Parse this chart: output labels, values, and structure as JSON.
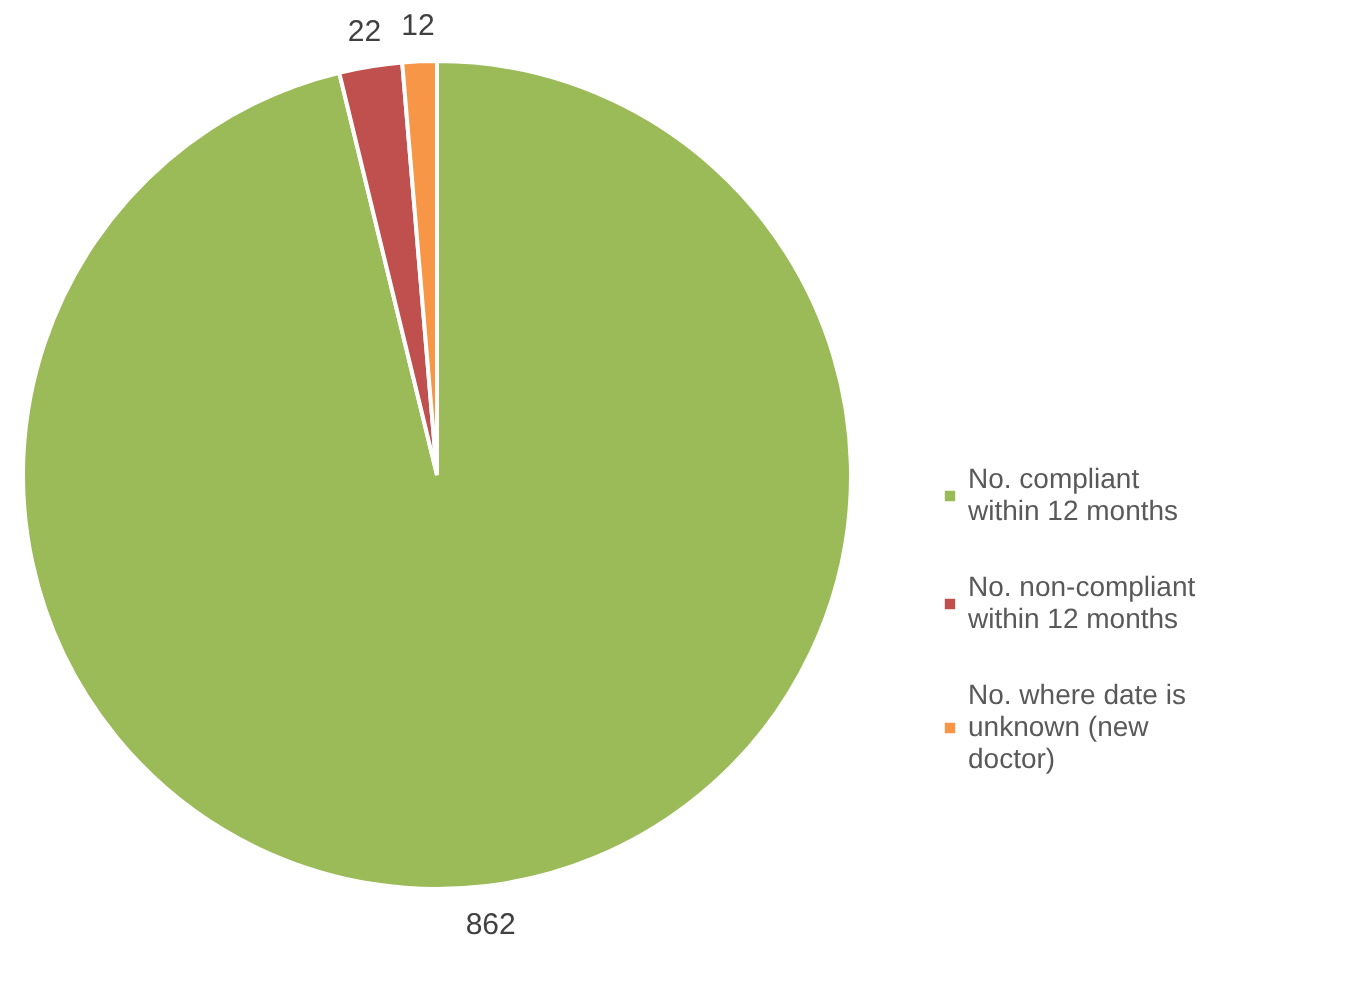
{
  "chart_data": {
    "type": "pie",
    "categories": [
      "No. compliant within 12 months",
      "No. non-compliant within 12 months",
      "No. where date is unknown (new doctor)"
    ],
    "values": [
      862,
      22,
      12
    ],
    "colors": [
      "#9bbb59",
      "#c0504d",
      "#f79646"
    ],
    "data_labels": true,
    "legend": "right"
  }
}
